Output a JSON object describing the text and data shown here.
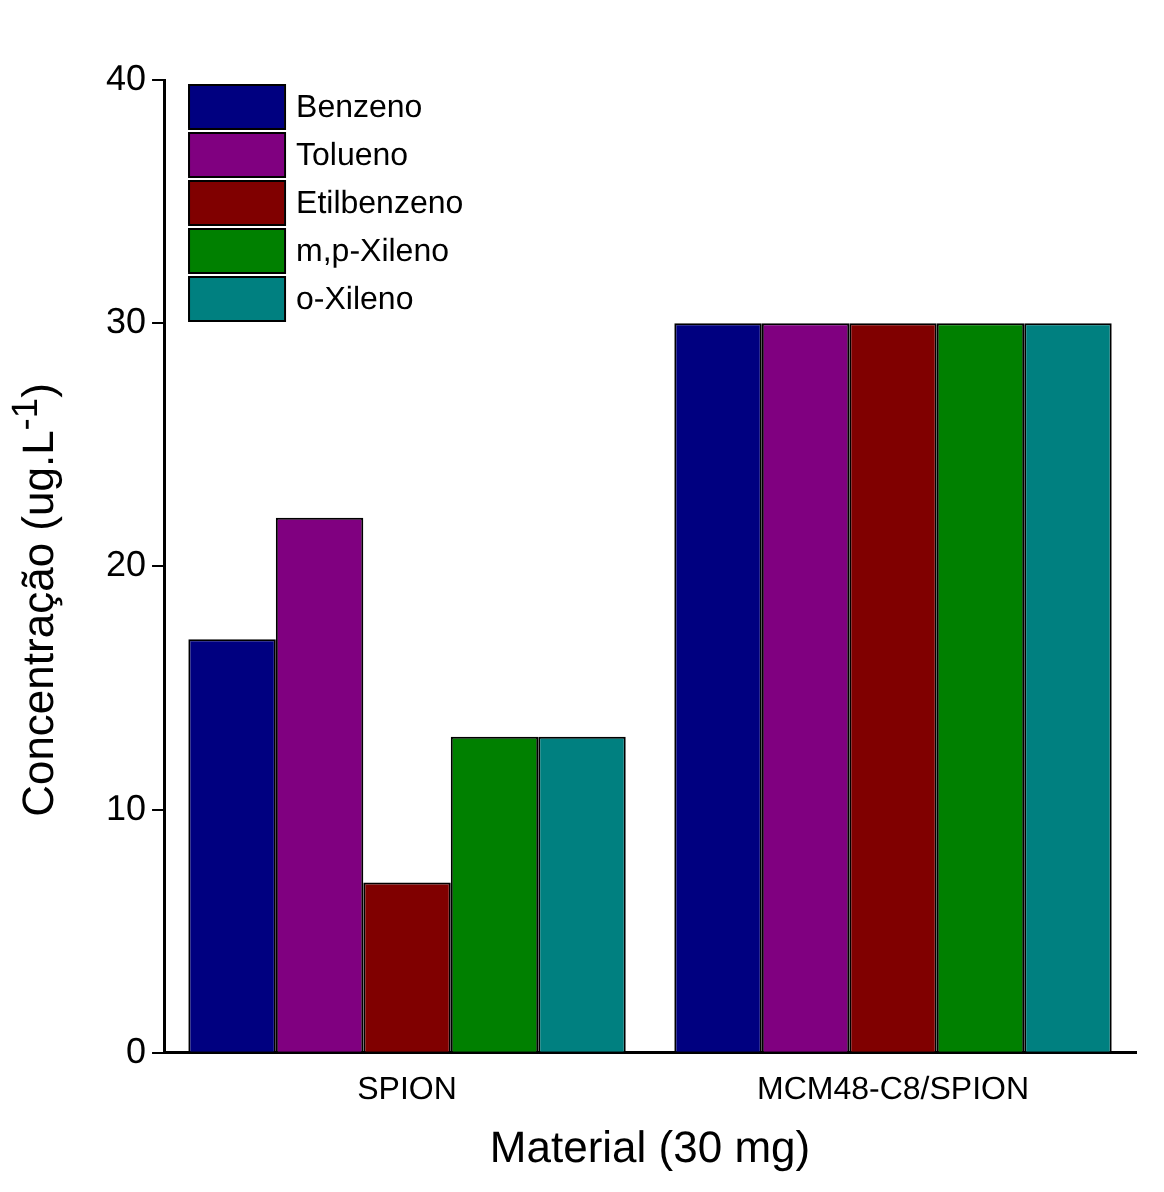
{
  "chart_data": {
    "type": "bar",
    "xlabel": "Material (30 mg)",
    "ylabel": "Concentração (ug.L$^{-1}$)",
    "categories": [
      "SPION",
      "MCM48-C8/SPION"
    ],
    "series": [
      {
        "name": "Benzeno",
        "color": "#000080",
        "values": [
          17,
          30
        ]
      },
      {
        "name": "Tolueno",
        "color": "#800080",
        "values": [
          22,
          30
        ]
      },
      {
        "name": "Etilbenzeno",
        "color": "#800000",
        "values": [
          7,
          30
        ]
      },
      {
        "name": "m,p-Xileno",
        "color": "#008000",
        "values": [
          13,
          30
        ]
      },
      {
        "name": "o-Xileno",
        "color": "#008080",
        "values": [
          13,
          30
        ]
      }
    ],
    "ylim": [
      0,
      40
    ],
    "yticks": [
      0,
      10,
      20,
      30,
      40
    ],
    "grid": false,
    "legend": "top left"
  }
}
